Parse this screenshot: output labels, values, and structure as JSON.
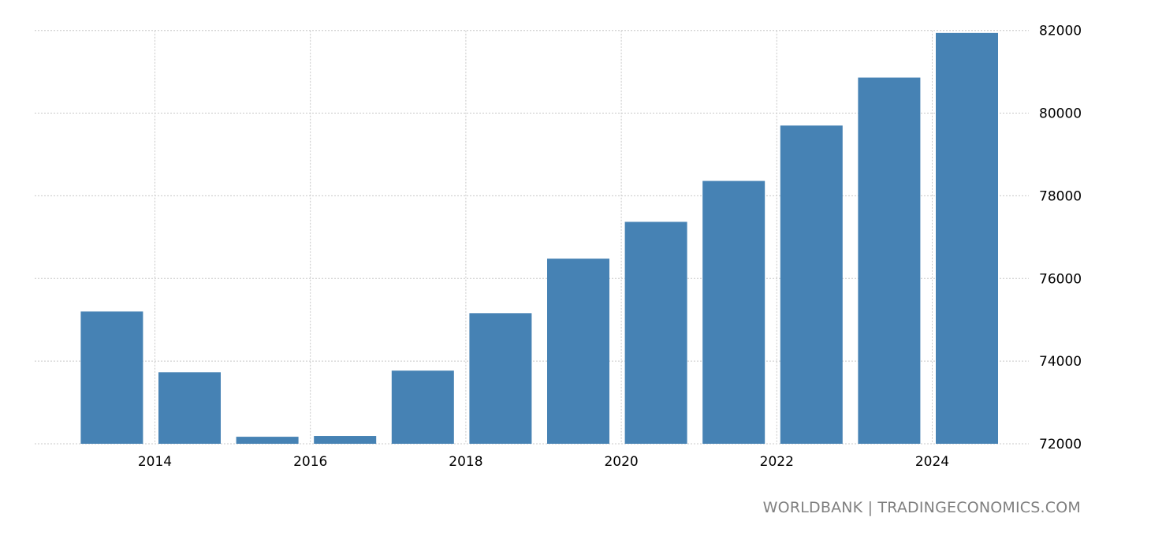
{
  "chart_data": {
    "type": "bar",
    "title": "",
    "xlabel": "",
    "ylabel": "",
    "categories": [
      "2013",
      "2014",
      "2015",
      "2016",
      "2017",
      "2018",
      "2019",
      "2020",
      "2021",
      "2022",
      "2023",
      "2024"
    ],
    "values": [
      75200,
      73730,
      72170,
      72190,
      73770,
      75160,
      76480,
      77370,
      78360,
      79700,
      80860,
      81940
    ],
    "ylim": [
      72000,
      82000
    ],
    "yticks": [
      72000,
      74000,
      76000,
      78000,
      80000,
      82000
    ],
    "xticks": [
      "2014",
      "2016",
      "2018",
      "2020",
      "2022",
      "2024"
    ],
    "grid": true,
    "y_axis_side": "right",
    "bar_color": "#4682b4"
  },
  "source": "WORLDBANK | TRADINGECONOMICS.COM"
}
